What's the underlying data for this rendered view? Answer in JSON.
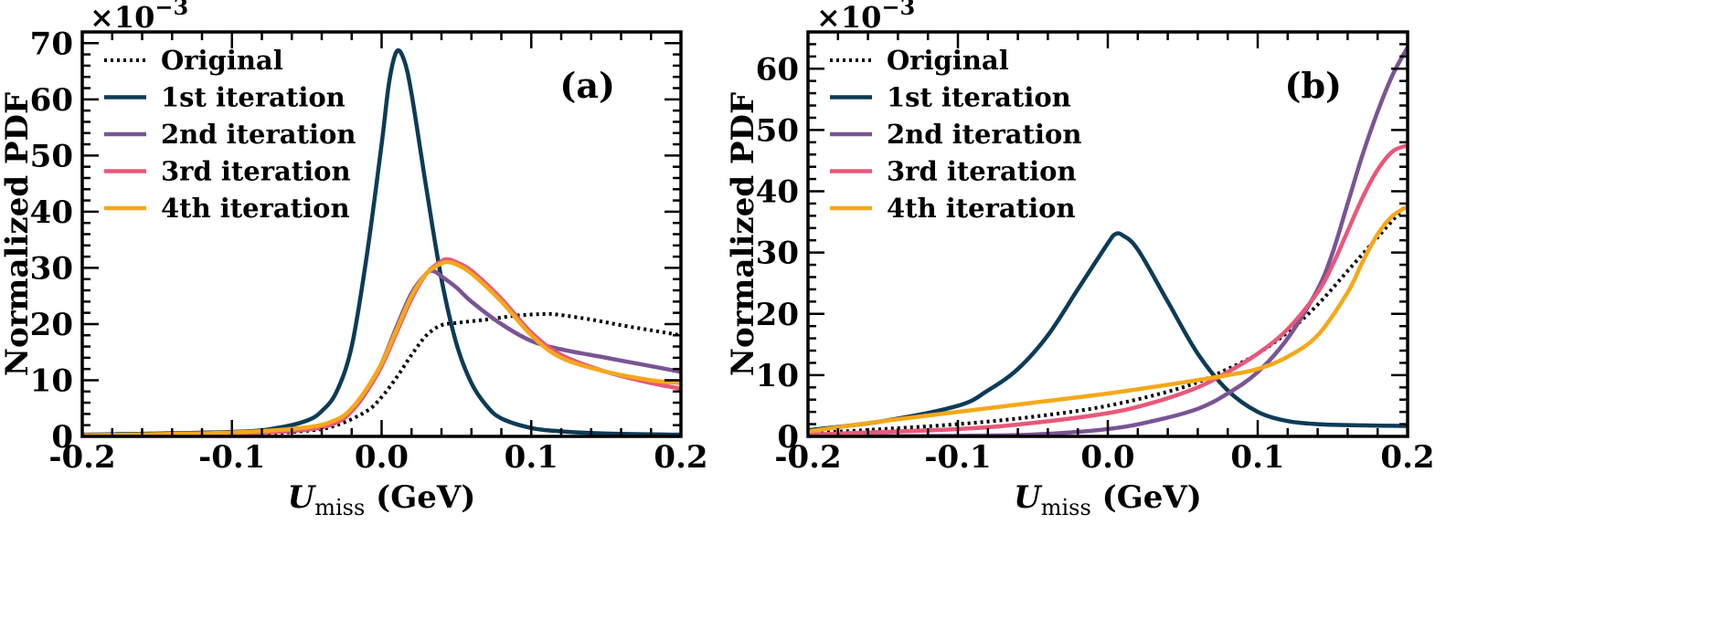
{
  "figure": {
    "panels_shared": {
      "xlabel_main": "U",
      "xlabel_sub": "miss",
      "xlabel_unit": " (GeV)",
      "ylabel": "Normalized PDF",
      "multiplier_base": "×10",
      "multiplier_exp": "−3"
    }
  },
  "legend": {
    "original": "Original",
    "iter1": "1st iteration",
    "iter2": "2nd iteration",
    "iter3": "3rd iteration",
    "iter4": "4th iteration"
  },
  "colors": {
    "original": "#000000",
    "iter1": "#0d3b57",
    "iter2": "#7a5495",
    "iter3": "#e8587a",
    "iter4": "#f5a81a"
  },
  "chart_data": [
    {
      "type": "line",
      "panel_label": "(a)",
      "xlim": [
        -0.2,
        0.2
      ],
      "ylim": [
        0,
        72
      ],
      "y_multiplier": "1e-3",
      "xticks": [
        -0.2,
        -0.1,
        0.0,
        0.1,
        0.2
      ],
      "xtick_labels": [
        "-0.2",
        "-0.1",
        "0.0",
        "0.1",
        "0.2"
      ],
      "yticks": [
        0,
        10,
        20,
        30,
        40,
        50,
        60,
        70
      ],
      "ytick_labels": [
        "0",
        "10",
        "20",
        "30",
        "40",
        "50",
        "60",
        "70"
      ],
      "legend_position": "top-left",
      "series": [
        {
          "key": "original",
          "name": "Original",
          "style": "dotted",
          "x": [
            -0.2,
            -0.1,
            -0.05,
            -0.03,
            -0.01,
            0.0,
            0.01,
            0.02,
            0.03,
            0.04,
            0.05,
            0.07,
            0.09,
            0.11,
            0.12,
            0.14,
            0.16,
            0.18,
            0.2
          ],
          "y": [
            0,
            0.3,
            1.0,
            2.0,
            4.5,
            7.0,
            10.5,
            14.5,
            18.0,
            19.8,
            20.2,
            20.8,
            21.5,
            21.8,
            21.6,
            20.8,
            19.8,
            18.9,
            18.0
          ]
        },
        {
          "key": "iter1",
          "name": "1st iteration",
          "style": "solid",
          "x": [
            -0.2,
            -0.1,
            -0.07,
            -0.05,
            -0.04,
            -0.03,
            -0.02,
            -0.01,
            0.0,
            0.005,
            0.01,
            0.015,
            0.02,
            0.03,
            0.04,
            0.05,
            0.06,
            0.07,
            0.08,
            0.1,
            0.12,
            0.15,
            0.2
          ],
          "y": [
            0.3,
            0.8,
            1.5,
            2.8,
            4.5,
            8.0,
            16.0,
            32.0,
            52.0,
            63.0,
            68.5,
            67.0,
            61.0,
            44.0,
            28.0,
            16.5,
            9.5,
            5.5,
            3.2,
            1.5,
            0.9,
            0.5,
            0.3
          ]
        },
        {
          "key": "iter2",
          "name": "2nd iteration",
          "style": "solid",
          "x": [
            -0.2,
            -0.1,
            -0.05,
            -0.03,
            -0.02,
            -0.01,
            0.0,
            0.01,
            0.02,
            0.03,
            0.035,
            0.04,
            0.05,
            0.06,
            0.08,
            0.1,
            0.12,
            0.15,
            0.18,
            0.2
          ],
          "y": [
            0,
            0.5,
            1.2,
            2.5,
            4.5,
            8.0,
            13.0,
            19.5,
            25.5,
            29.0,
            29.4,
            28.5,
            26.5,
            24.0,
            20.0,
            17.0,
            15.5,
            14.0,
            12.5,
            11.5
          ]
        },
        {
          "key": "iter3",
          "name": "3rd iteration",
          "style": "solid",
          "x": [
            -0.2,
            -0.1,
            -0.05,
            -0.03,
            -0.02,
            -0.01,
            0.0,
            0.01,
            0.02,
            0.03,
            0.04,
            0.045,
            0.05,
            0.06,
            0.08,
            0.1,
            0.12,
            0.15,
            0.18,
            0.2
          ],
          "y": [
            0,
            0.5,
            1.2,
            2.5,
            4.5,
            8.0,
            12.5,
            18.5,
            24.5,
            29.0,
            31.2,
            31.5,
            31.0,
            29.5,
            24.5,
            18.5,
            14.5,
            11.5,
            9.5,
            8.5
          ]
        },
        {
          "key": "iter4",
          "name": "4th iteration",
          "style": "solid",
          "x": [
            -0.2,
            -0.1,
            -0.05,
            -0.03,
            -0.02,
            -0.01,
            0.0,
            0.01,
            0.02,
            0.03,
            0.04,
            0.045,
            0.05,
            0.06,
            0.08,
            0.1,
            0.12,
            0.15,
            0.18,
            0.2
          ],
          "y": [
            0.2,
            0.7,
            1.6,
            3.0,
            5.0,
            8.5,
            13.0,
            19.0,
            25.0,
            29.0,
            30.8,
            31.0,
            30.6,
            29.0,
            24.0,
            18.0,
            14.0,
            11.5,
            10.0,
            9.5
          ]
        }
      ]
    },
    {
      "type": "line",
      "panel_label": "(b)",
      "xlim": [
        -0.2,
        0.2
      ],
      "ylim": [
        0,
        66
      ],
      "y_multiplier": "1e-3",
      "xticks": [
        -0.2,
        -0.1,
        0.0,
        0.1,
        0.2
      ],
      "xtick_labels": [
        "-0.2",
        "-0.1",
        "0.0",
        "0.1",
        "0.2"
      ],
      "yticks": [
        0,
        10,
        20,
        30,
        40,
        50,
        60
      ],
      "ytick_labels": [
        "0",
        "10",
        "20",
        "30",
        "40",
        "50",
        "60"
      ],
      "legend_position": "top-left",
      "series": [
        {
          "key": "original",
          "name": "Original",
          "style": "dotted",
          "x": [
            -0.2,
            -0.15,
            -0.1,
            -0.05,
            0.0,
            0.05,
            0.08,
            0.1,
            0.12,
            0.14,
            0.16,
            0.18,
            0.2
          ],
          "y": [
            0.5,
            1.2,
            2.0,
            3.2,
            5.0,
            8.0,
            11.0,
            13.5,
            17.0,
            21.5,
            27.0,
            32.5,
            38.0
          ]
        },
        {
          "key": "iter1",
          "name": "1st iteration",
          "style": "solid",
          "x": [
            -0.2,
            -0.15,
            -0.1,
            -0.08,
            -0.06,
            -0.04,
            -0.02,
            0.0,
            0.005,
            0.01,
            0.02,
            0.04,
            0.06,
            0.08,
            0.1,
            0.12,
            0.14,
            0.17,
            0.2
          ],
          "y": [
            1.0,
            2.5,
            5.0,
            7.5,
            11.0,
            16.5,
            24.0,
            31.5,
            33.0,
            32.8,
            30.5,
            22.0,
            13.5,
            7.5,
            4.0,
            2.5,
            2.0,
            1.8,
            1.7
          ]
        },
        {
          "key": "iter2",
          "name": "2nd iteration",
          "style": "solid",
          "x": [
            -0.2,
            -0.1,
            -0.05,
            0.0,
            0.03,
            0.06,
            0.08,
            0.1,
            0.12,
            0.14,
            0.15,
            0.16,
            0.17,
            0.18,
            0.19,
            0.2
          ],
          "y": [
            0,
            0.1,
            0.3,
            1.2,
            2.5,
            4.5,
            7.0,
            10.5,
            16.0,
            24.0,
            30.0,
            38.0,
            46.0,
            53.0,
            59.0,
            63.5
          ]
        },
        {
          "key": "iter3",
          "name": "3rd iteration",
          "style": "solid",
          "x": [
            -0.2,
            -0.1,
            -0.05,
            0.0,
            0.03,
            0.06,
            0.08,
            0.1,
            0.12,
            0.14,
            0.15,
            0.16,
            0.17,
            0.18,
            0.19,
            0.2
          ],
          "y": [
            0.3,
            1.2,
            2.2,
            3.8,
            5.5,
            8.0,
            10.5,
            13.5,
            17.5,
            23.5,
            28.0,
            33.5,
            39.0,
            43.5,
            46.5,
            47.5
          ]
        },
        {
          "key": "iter4",
          "name": "4th iteration",
          "style": "solid",
          "x": [
            -0.2,
            -0.15,
            -0.1,
            -0.05,
            0.0,
            0.05,
            0.08,
            0.1,
            0.12,
            0.14,
            0.16,
            0.17,
            0.18,
            0.19,
            0.2
          ],
          "y": [
            0.8,
            2.5,
            4.0,
            5.5,
            7.0,
            8.8,
            10.0,
            11.0,
            13.0,
            16.5,
            23.5,
            28.5,
            33.0,
            36.0,
            37.5
          ]
        }
      ]
    }
  ]
}
